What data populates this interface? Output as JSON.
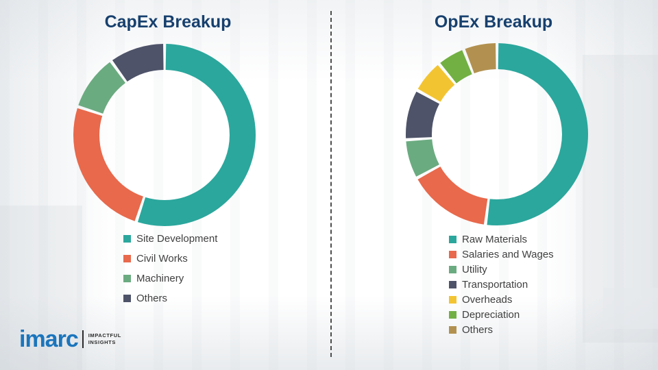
{
  "chart_data": [
    {
      "type": "pie",
      "donut": true,
      "title": "CapEx Breakup",
      "labels": [
        "Site Development",
        "Civil Works",
        "Machinery",
        "Others"
      ],
      "values": [
        55,
        25,
        10,
        10
      ],
      "colors": [
        "#2BA79D",
        "#E8694C",
        "#6BAB80",
        "#4E5369"
      ],
      "legend_position": "bottom",
      "title_color": "#17406E"
    },
    {
      "type": "pie",
      "donut": true,
      "title": "OpEx Breakup",
      "labels": [
        "Raw Materials",
        "Salaries and Wages",
        "Utility",
        "Transportation",
        "Overheads",
        "Depreciation",
        "Others"
      ],
      "values": [
        52,
        15,
        7,
        9,
        6,
        5,
        6
      ],
      "colors": [
        "#2BA79D",
        "#E8694C",
        "#6BAB80",
        "#4E5369",
        "#F3C432",
        "#72B043",
        "#B29150"
      ],
      "legend_position": "bottom",
      "title_color": "#17406E"
    }
  ],
  "branding": {
    "logo_text": "imarc",
    "tagline_line1": "IMPACTFUL",
    "tagline_line2": "INSIGHTS",
    "logo_color": "#1B75BC"
  }
}
